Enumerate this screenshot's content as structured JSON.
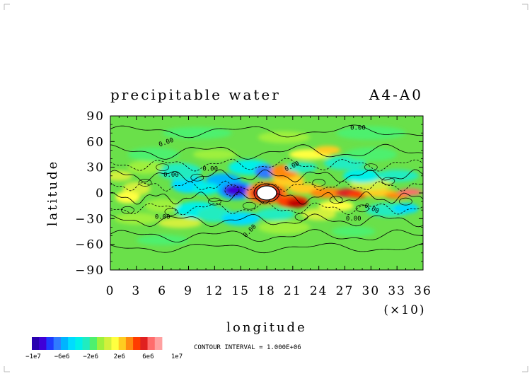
{
  "chart_data": {
    "type": "heatmap",
    "title": "precipitable water",
    "subtitle": "A4-A0",
    "xlabel": "longitude",
    "ylabel": "latitude",
    "x_multiplier": "(×10)",
    "x_ticks": [
      "0",
      "3",
      "6",
      "9",
      "12",
      "15",
      "18",
      "21",
      "24",
      "27",
      "30",
      "33",
      "36"
    ],
    "y_ticks": [
      "90",
      "60",
      "30",
      "0",
      "−30",
      "−60",
      "−90"
    ],
    "xlim": [
      0,
      36
    ],
    "ylim": [
      -90,
      90
    ],
    "contour_interval": "CONTOUR INTERVAL = 1.000E+06",
    "contour_labels": [
      "0.00",
      "0.00",
      "0.00",
      "0.00",
      "0.00",
      "0.00",
      "0.00",
      "0.00",
      "0.00"
    ],
    "colorbar": {
      "tick_labels": [
        "−1e7",
        "−6e6",
        "−2e6",
        "2e6",
        "6e6",
        "1e7"
      ],
      "colors": [
        "#2800b0",
        "#3f00d8",
        "#1e3cff",
        "#2f7bff",
        "#00b4ff",
        "#00dcff",
        "#00f0e8",
        "#20ecc0",
        "#4ef06e",
        "#9ef03c",
        "#d2f03c",
        "#ffff40",
        "#ffcc20",
        "#ff8a10",
        "#ff3c00",
        "#e02020",
        "#ff6c6c",
        "#ffa0a0"
      ]
    },
    "features": [
      {
        "kind": "low",
        "lon": 14,
        "lat": 3,
        "value": -10000000.0
      },
      {
        "kind": "high",
        "lon": 18,
        "lat": 0,
        "value": 10000000.0
      },
      {
        "kind": "high",
        "lon": 22,
        "lat": -10,
        "value": 8000000.0
      },
      {
        "kind": "high",
        "lon": 28,
        "lat": 0,
        "value": 6000000.0
      }
    ]
  },
  "ui": {
    "frame_color": "#000000",
    "background_field_color": "#6ae04a"
  }
}
